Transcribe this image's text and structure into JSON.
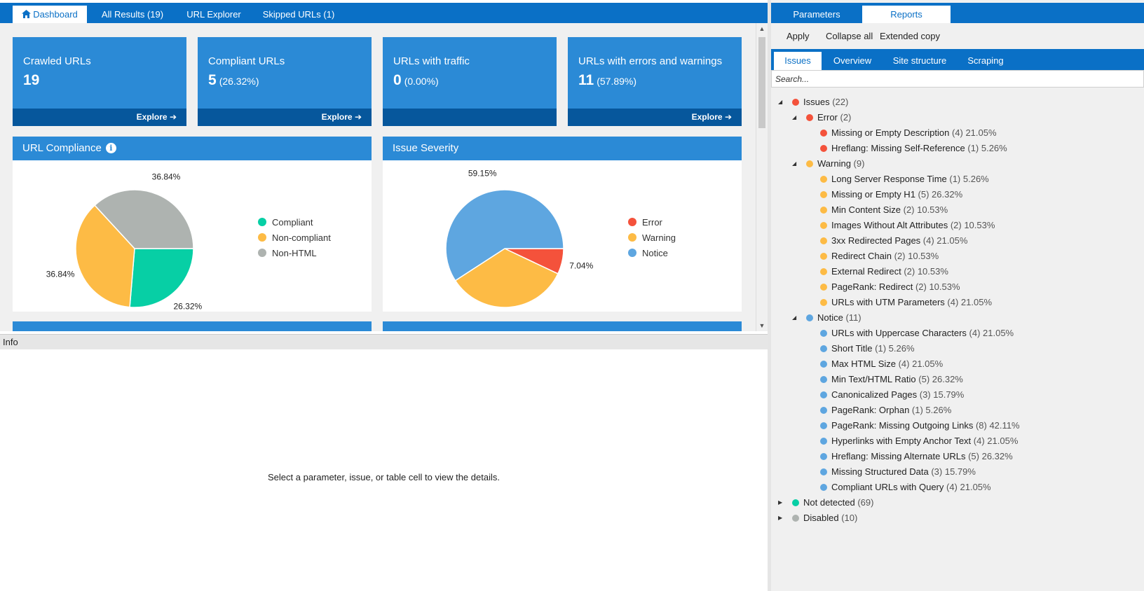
{
  "colors": {
    "accent": "#0a70c6",
    "card": "#2b8ad6",
    "card_footer": "#06579c",
    "error": "#f4523b",
    "warning": "#fdbb45",
    "notice": "#5ea6e0",
    "ok": "#07cfa5",
    "disabled": "#aeb3b0"
  },
  "top_tabs": [
    {
      "label": "Dashboard",
      "icon": "home-icon"
    },
    {
      "label": "All Results (19)"
    },
    {
      "label": "URL Explorer"
    },
    {
      "label": "Skipped URLs (1)"
    }
  ],
  "cards": [
    {
      "title": "Crawled URLs",
      "value": "19",
      "pct": "",
      "explore": "Explore"
    },
    {
      "title": "Compliant URLs",
      "value": "5",
      "pct": "(26.32%)",
      "explore": "Explore"
    },
    {
      "title": "URLs with traffic",
      "value": "0",
      "pct": "(0.00%)",
      "explore": ""
    },
    {
      "title": "URLs with errors and warnings",
      "value": "11",
      "pct": "(57.89%)",
      "explore": "Explore"
    }
  ],
  "compliance_panel": {
    "title": "URL Compliance"
  },
  "severity_panel": {
    "title": "Issue Severity"
  },
  "chart_data": [
    {
      "type": "pie",
      "title": "URL Compliance",
      "labels": [
        "Compliant",
        "Non-compliant",
        "Non-HTML"
      ],
      "values": [
        26.32,
        36.84,
        36.84
      ],
      "value_labels": [
        "26.32%",
        "36.84%",
        "36.84%"
      ],
      "colors": [
        "#07cfa5",
        "#fdbb45",
        "#aeb3b0"
      ],
      "legend": "right"
    },
    {
      "type": "pie",
      "title": "Issue Severity",
      "labels": [
        "Error",
        "Warning",
        "Notice"
      ],
      "values": [
        7.04,
        33.8,
        59.15
      ],
      "value_labels": [
        "7.04%",
        "33.80%",
        "59.15%"
      ],
      "colors": [
        "#f4523b",
        "#fdbb45",
        "#5ea6e0"
      ],
      "legend": "right"
    }
  ],
  "info": {
    "title": "Info",
    "message": "Select a parameter, issue, or table cell to view the details."
  },
  "right_tabs": [
    "Parameters",
    "Reports"
  ],
  "toolbar": {
    "apply": "Apply",
    "collapse_all": "Collapse all",
    "extended_copy": "Extended copy"
  },
  "sub_tabs": [
    "Issues",
    "Overview",
    "Site structure",
    "Scraping"
  ],
  "search": {
    "placeholder": "Search..."
  },
  "tree": [
    {
      "level": 0,
      "expanded": true,
      "color": "#f4523b",
      "label": "Issues",
      "count": "(22)",
      "pct": ""
    },
    {
      "level": 1,
      "expanded": true,
      "color": "#f4523b",
      "label": "Error",
      "count": "(2)",
      "pct": ""
    },
    {
      "level": 2,
      "color": "#f4523b",
      "label": "Missing or Empty Description",
      "count": "(4)",
      "pct": "21.05%"
    },
    {
      "level": 2,
      "color": "#f4523b",
      "label": "Hreflang: Missing Self-Reference",
      "count": "(1)",
      "pct": "5.26%"
    },
    {
      "level": 1,
      "expanded": true,
      "color": "#fdbb45",
      "label": "Warning",
      "count": "(9)",
      "pct": ""
    },
    {
      "level": 2,
      "color": "#fdbb45",
      "label": "Long Server Response Time",
      "count": "(1)",
      "pct": "5.26%"
    },
    {
      "level": 2,
      "color": "#fdbb45",
      "label": "Missing or Empty H1",
      "count": "(5)",
      "pct": "26.32%"
    },
    {
      "level": 2,
      "color": "#fdbb45",
      "label": "Min Content Size",
      "count": "(2)",
      "pct": "10.53%"
    },
    {
      "level": 2,
      "color": "#fdbb45",
      "label": "Images Without Alt Attributes",
      "count": "(2)",
      "pct": "10.53%"
    },
    {
      "level": 2,
      "color": "#fdbb45",
      "label": "3xx Redirected Pages",
      "count": "(4)",
      "pct": "21.05%"
    },
    {
      "level": 2,
      "color": "#fdbb45",
      "label": "Redirect Chain",
      "count": "(2)",
      "pct": "10.53%"
    },
    {
      "level": 2,
      "color": "#fdbb45",
      "label": "External Redirect",
      "count": "(2)",
      "pct": "10.53%"
    },
    {
      "level": 2,
      "color": "#fdbb45",
      "label": "PageRank: Redirect",
      "count": "(2)",
      "pct": "10.53%"
    },
    {
      "level": 2,
      "color": "#fdbb45",
      "label": "URLs with UTM Parameters",
      "count": "(4)",
      "pct": "21.05%"
    },
    {
      "level": 1,
      "expanded": true,
      "color": "#5ea6e0",
      "label": "Notice",
      "count": "(11)",
      "pct": ""
    },
    {
      "level": 2,
      "color": "#5ea6e0",
      "label": "URLs with Uppercase Characters",
      "count": "(4)",
      "pct": "21.05%"
    },
    {
      "level": 2,
      "color": "#5ea6e0",
      "label": "Short Title",
      "count": "(1)",
      "pct": "5.26%"
    },
    {
      "level": 2,
      "color": "#5ea6e0",
      "label": "Max HTML Size",
      "count": "(4)",
      "pct": "21.05%"
    },
    {
      "level": 2,
      "color": "#5ea6e0",
      "label": "Min Text/HTML Ratio",
      "count": "(5)",
      "pct": "26.32%"
    },
    {
      "level": 2,
      "color": "#5ea6e0",
      "label": "Canonicalized Pages",
      "count": "(3)",
      "pct": "15.79%"
    },
    {
      "level": 2,
      "color": "#5ea6e0",
      "label": "PageRank: Orphan",
      "count": "(1)",
      "pct": "5.26%"
    },
    {
      "level": 2,
      "color": "#5ea6e0",
      "label": "PageRank: Missing Outgoing Links",
      "count": "(8)",
      "pct": "42.11%"
    },
    {
      "level": 2,
      "color": "#5ea6e0",
      "label": "Hyperlinks with Empty Anchor Text",
      "count": "(4)",
      "pct": "21.05%"
    },
    {
      "level": 2,
      "color": "#5ea6e0",
      "label": "Hreflang: Missing Alternate URLs",
      "count": "(5)",
      "pct": "26.32%"
    },
    {
      "level": 2,
      "color": "#5ea6e0",
      "label": "Missing Structured Data",
      "count": "(3)",
      "pct": "15.79%"
    },
    {
      "level": 2,
      "color": "#5ea6e0",
      "label": "Compliant URLs with Query",
      "count": "(4)",
      "pct": "21.05%"
    },
    {
      "level": 0,
      "expanded": false,
      "color": "#07cfa5",
      "label": "Not detected",
      "count": "(69)",
      "pct": ""
    },
    {
      "level": 0,
      "expanded": false,
      "color": "#aeb3b0",
      "label": "Disabled",
      "count": "(10)",
      "pct": ""
    }
  ]
}
